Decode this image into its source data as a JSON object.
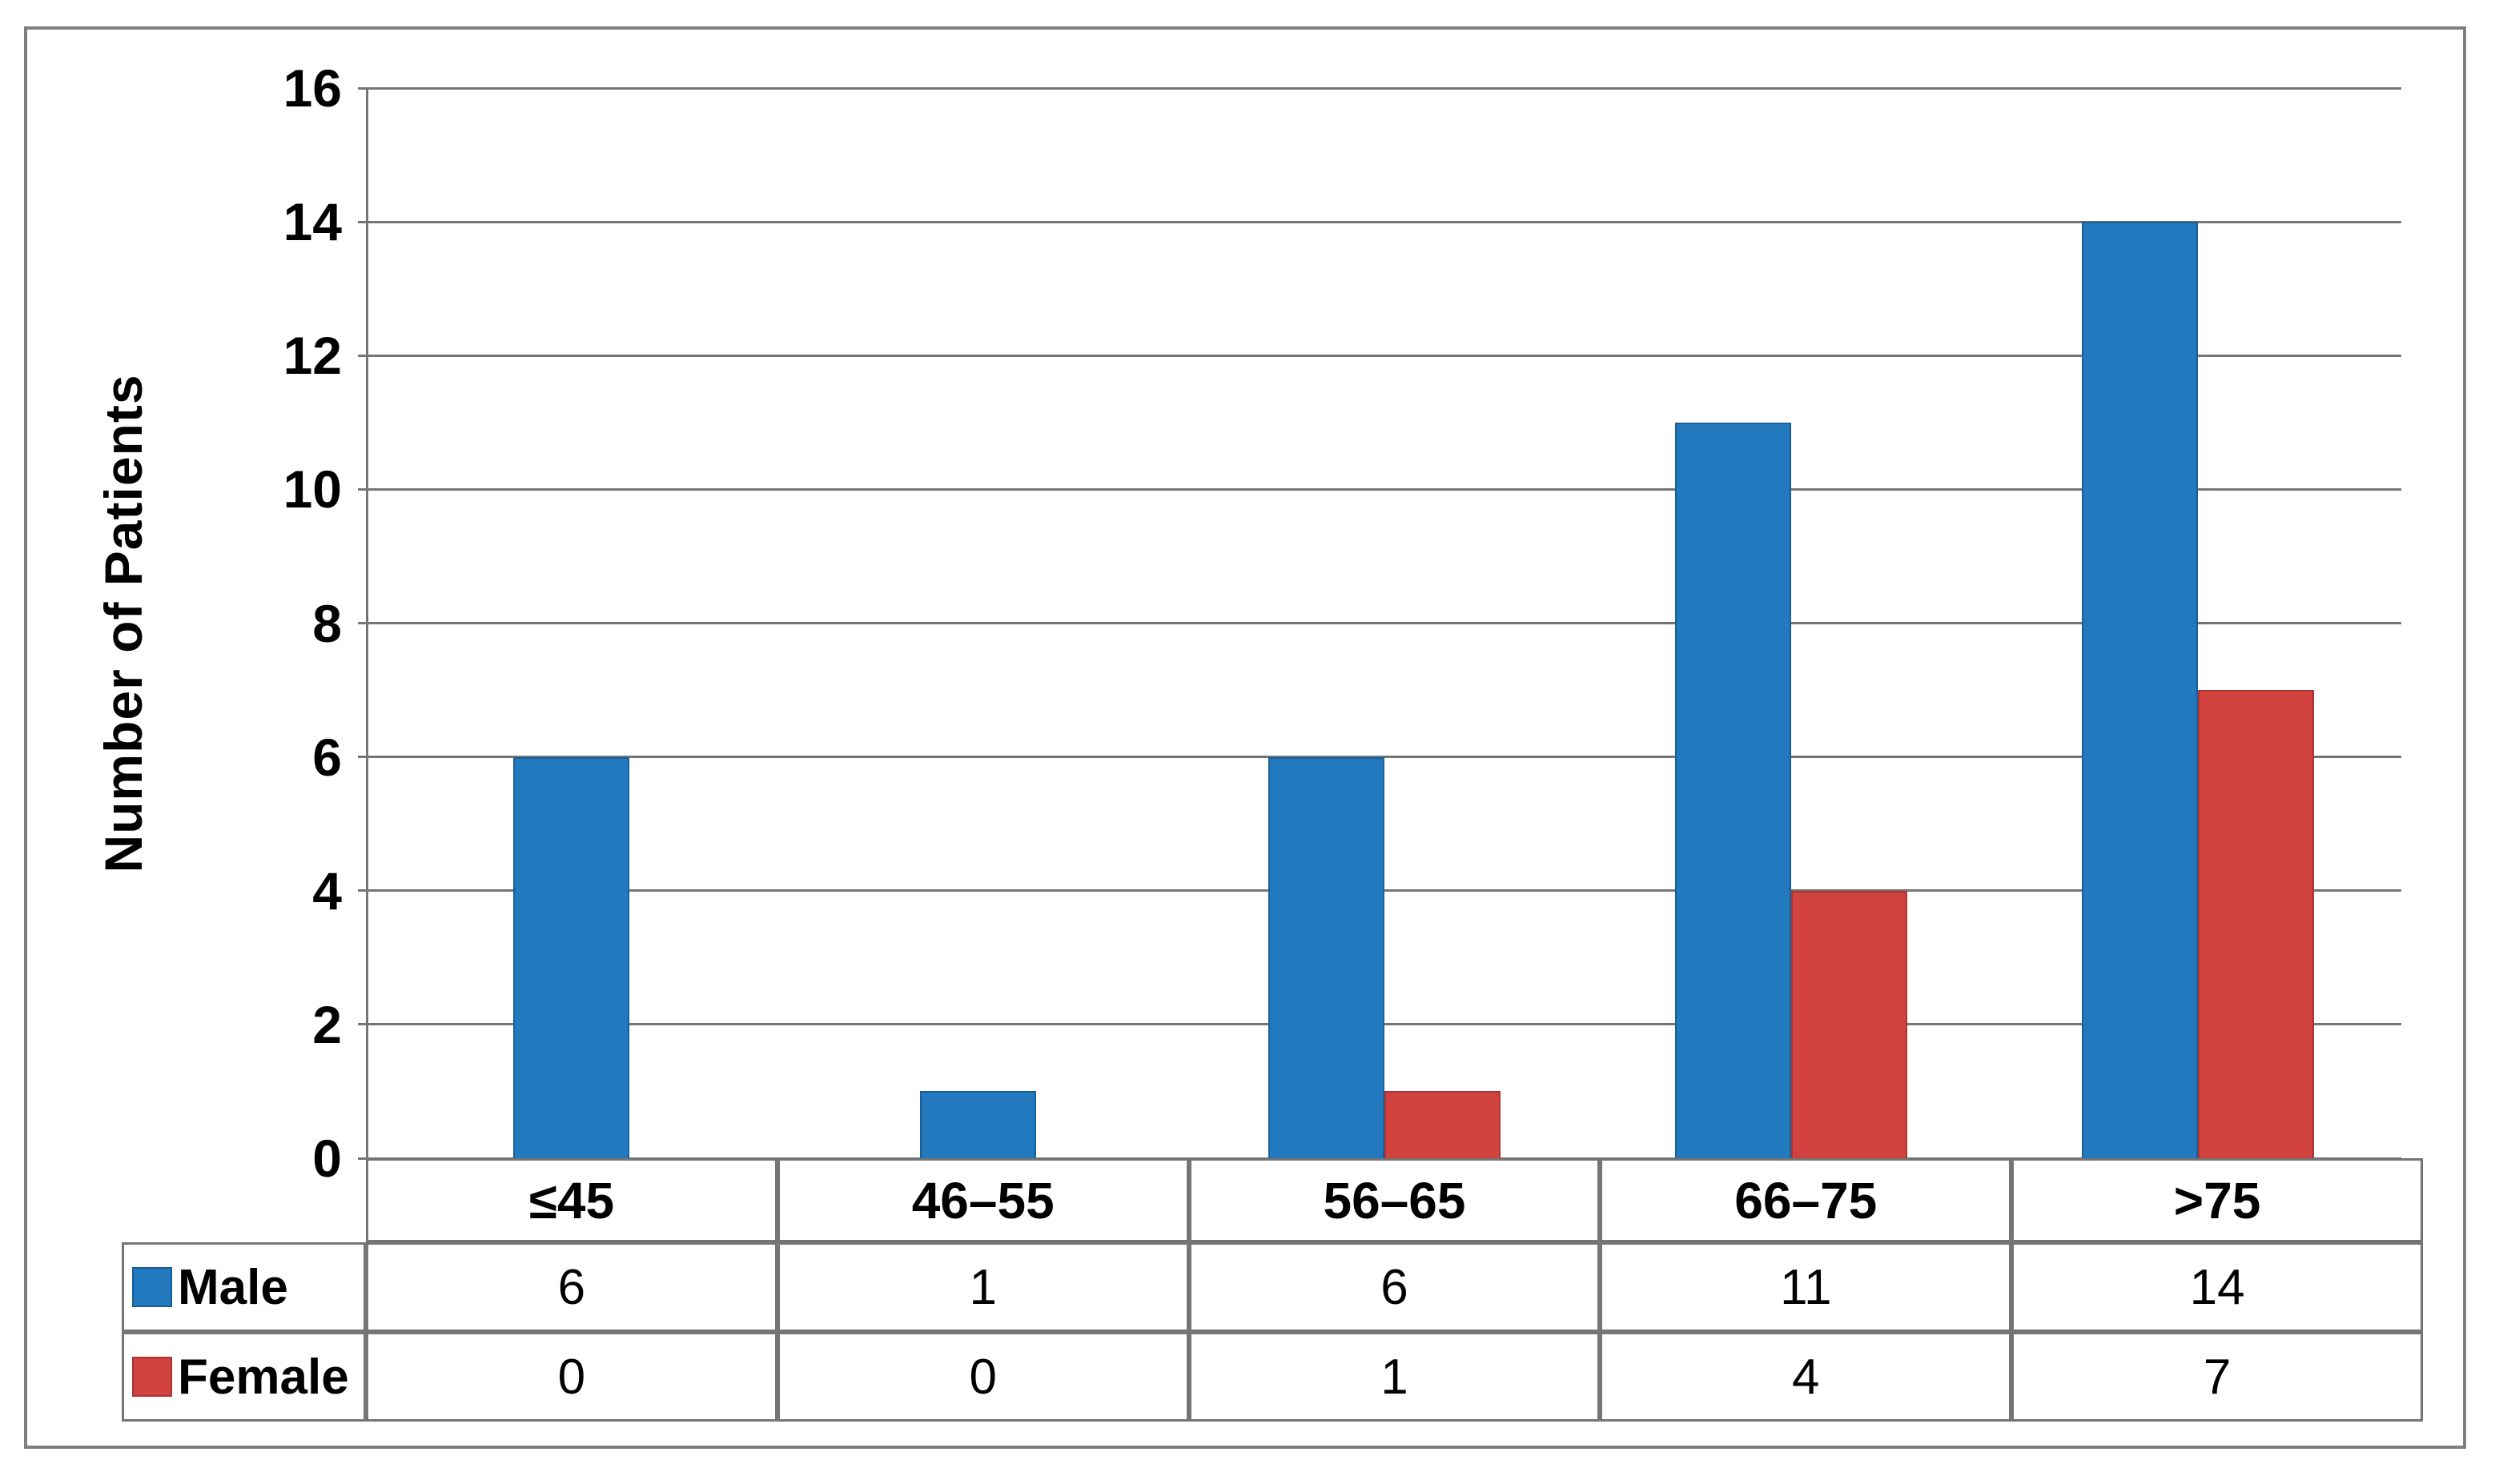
{
  "figure": {
    "background": "#FFFFFF",
    "frame_color": "#7F7F7F",
    "line_color": "#757575"
  },
  "chart_data": {
    "type": "bar",
    "title": "",
    "xlabel": "",
    "ylabel": "Number of Patients",
    "ylim": [
      0,
      16
    ],
    "ytick_step": 2,
    "yticks": [
      0,
      2,
      4,
      6,
      8,
      10,
      12,
      14,
      16
    ],
    "grid": true,
    "categories": [
      "≤45",
      "46–55",
      "56–65",
      "66–75",
      ">75"
    ],
    "series": [
      {
        "name": "Male",
        "color": "#2279BE",
        "edge_color": "#1A5E97",
        "values": [
          6,
          1,
          6,
          11,
          14
        ]
      },
      {
        "name": "Female",
        "color": "#D2423E",
        "edge_color": "#A83532",
        "values": [
          0,
          0,
          1,
          4,
          7
        ]
      }
    ],
    "legend_position": "table-left-column",
    "data_table_shown": true
  }
}
